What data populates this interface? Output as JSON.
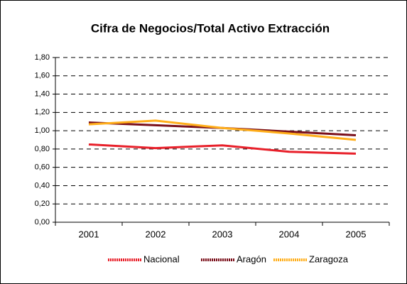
{
  "chart_data": {
    "type": "line",
    "title": "Cifra de Negocios/Total Activo Extracción",
    "categories": [
      "2001",
      "2002",
      "2003",
      "2004",
      "2005"
    ],
    "series": [
      {
        "name": "Nacional",
        "color": "#e8202a",
        "values": [
          0.85,
          0.81,
          0.84,
          0.77,
          0.75
        ]
      },
      {
        "name": "Aragón",
        "color": "#7a0f1a",
        "values": [
          1.09,
          1.06,
          1.03,
          0.99,
          0.95
        ]
      },
      {
        "name": "Zaragoza",
        "color": "#ffae1a",
        "values": [
          1.07,
          1.11,
          1.03,
          0.97,
          0.9
        ]
      }
    ],
    "ylim": [
      0,
      1.8
    ],
    "yticks": [
      {
        "value": 0,
        "label": "0,00"
      },
      {
        "value": 0.2,
        "label": "0,20"
      },
      {
        "value": 0.4,
        "label": "0,40"
      },
      {
        "value": 0.6,
        "label": "0,60"
      },
      {
        "value": 0.8,
        "label": "0,80"
      },
      {
        "value": 1.0,
        "label": "1,00"
      },
      {
        "value": 1.2,
        "label": "1,20"
      },
      {
        "value": 1.4,
        "label": "1,40"
      },
      {
        "value": 1.6,
        "label": "1,60"
      },
      {
        "value": 1.8,
        "label": "1,80"
      }
    ],
    "grid": true,
    "legend": "bottom"
  }
}
